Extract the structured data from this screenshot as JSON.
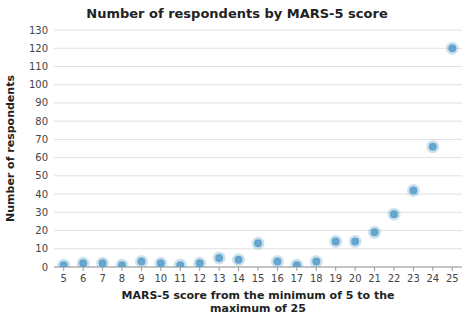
{
  "chart_data": {
    "type": "scatter",
    "title": "Number of respondents by MARS-5 score",
    "xlabel": "MARS-5 score from the minimum of 5 to the\nmaximum of 25",
    "ylabel": "Number of respondents",
    "x": [
      5,
      6,
      7,
      8,
      9,
      10,
      11,
      12,
      13,
      14,
      15,
      16,
      17,
      18,
      19,
      20,
      21,
      22,
      23,
      24,
      25
    ],
    "values": [
      1,
      2,
      2,
      1,
      3,
      2,
      1,
      2,
      5,
      4,
      13,
      3,
      1,
      3,
      14,
      14,
      19,
      29,
      42,
      66,
      120
    ],
    "color": "#5b9ec9",
    "xlim": [
      4.5,
      25.5
    ],
    "xticks": [
      5,
      6,
      7,
      8,
      9,
      10,
      11,
      12,
      13,
      14,
      15,
      16,
      17,
      18,
      19,
      20,
      21,
      22,
      23,
      24,
      25
    ],
    "ylim": [
      0,
      130
    ],
    "yticks": [
      0,
      10,
      20,
      30,
      40,
      50,
      60,
      70,
      80,
      90,
      100,
      110,
      120,
      130
    ],
    "grid": "y"
  }
}
